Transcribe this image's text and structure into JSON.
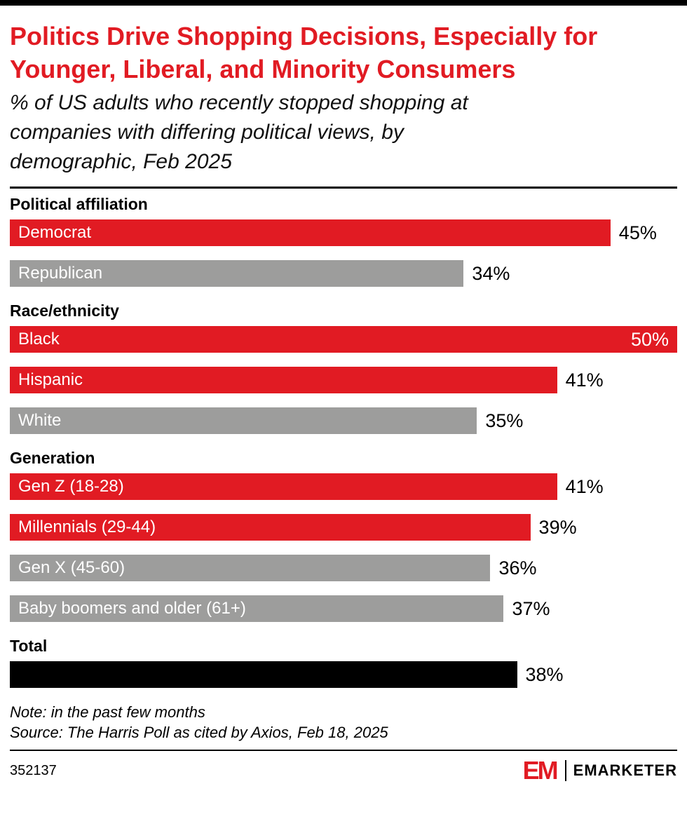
{
  "colors": {
    "red": "#E11B23",
    "gray": "#9D9D9C",
    "black": "#000000"
  },
  "header": {
    "title": "Politics Drive Shopping Decisions, Especially for Younger, Liberal, and Minority Consumers",
    "title_lines": [
      "Politics Drive Shopping Decisions, Especially for",
      "Younger, Liberal, and Minority Consumers"
    ],
    "subtitle": "% of US adults who recently stopped shopping at companies with differing political views, by demographic, Feb 2025",
    "subtitle_lines": [
      "% of US adults who recently stopped shopping at",
      "companies with differing political views, by",
      "demographic, Feb 2025"
    ]
  },
  "chart_data": {
    "type": "bar",
    "orientation": "horizontal",
    "unit": "%",
    "xlim": [
      0,
      50
    ],
    "title": "Politics Drive Shopping Decisions, Especially for Younger, Liberal, and Minority Consumers",
    "subtitle": "% of US adults who recently stopped shopping at companies with differing political views, by demographic, Feb 2025",
    "note": "Note: in the past few months",
    "source": "Source: The Harris Poll as cited by Axios, Feb 18, 2025",
    "groups": [
      {
        "label": "Political affiliation",
        "bars": [
          {
            "label": "Democrat",
            "value": 45,
            "value_label": "45%",
            "color": "red",
            "value_inside": false
          },
          {
            "label": "Republican",
            "value": 34,
            "value_label": "34%",
            "color": "gray",
            "value_inside": false
          }
        ]
      },
      {
        "label": "Race/ethnicity",
        "bars": [
          {
            "label": "Black",
            "value": 50,
            "value_label": "50%",
            "color": "red",
            "value_inside": true
          },
          {
            "label": "Hispanic",
            "value": 41,
            "value_label": "41%",
            "color": "red",
            "value_inside": false
          },
          {
            "label": "White",
            "value": 35,
            "value_label": "35%",
            "color": "gray",
            "value_inside": false
          }
        ]
      },
      {
        "label": "Generation",
        "bars": [
          {
            "label": "Gen Z (18-28)",
            "value": 41,
            "value_label": "41%",
            "color": "red",
            "value_inside": false
          },
          {
            "label": "Millennials (29-44)",
            "value": 39,
            "value_label": "39%",
            "color": "red",
            "value_inside": false
          },
          {
            "label": "Gen X (45-60)",
            "value": 36,
            "value_label": "36%",
            "color": "gray",
            "value_inside": false
          },
          {
            "label": "Baby boomers and older (61+)",
            "value": 37,
            "value_label": "37%",
            "color": "gray",
            "value_inside": false
          }
        ]
      },
      {
        "label": "Total",
        "bars": [
          {
            "label": "",
            "value": 38,
            "value_label": "38%",
            "color": "black",
            "value_inside": false
          }
        ]
      }
    ]
  },
  "footer": {
    "note": "Note: in the past few months",
    "source": "Source: The Harris Poll as cited by Axios, Feb 18, 2025",
    "chart_id": "352137",
    "brand_mark": "EM",
    "brand": "EMARKETER"
  }
}
